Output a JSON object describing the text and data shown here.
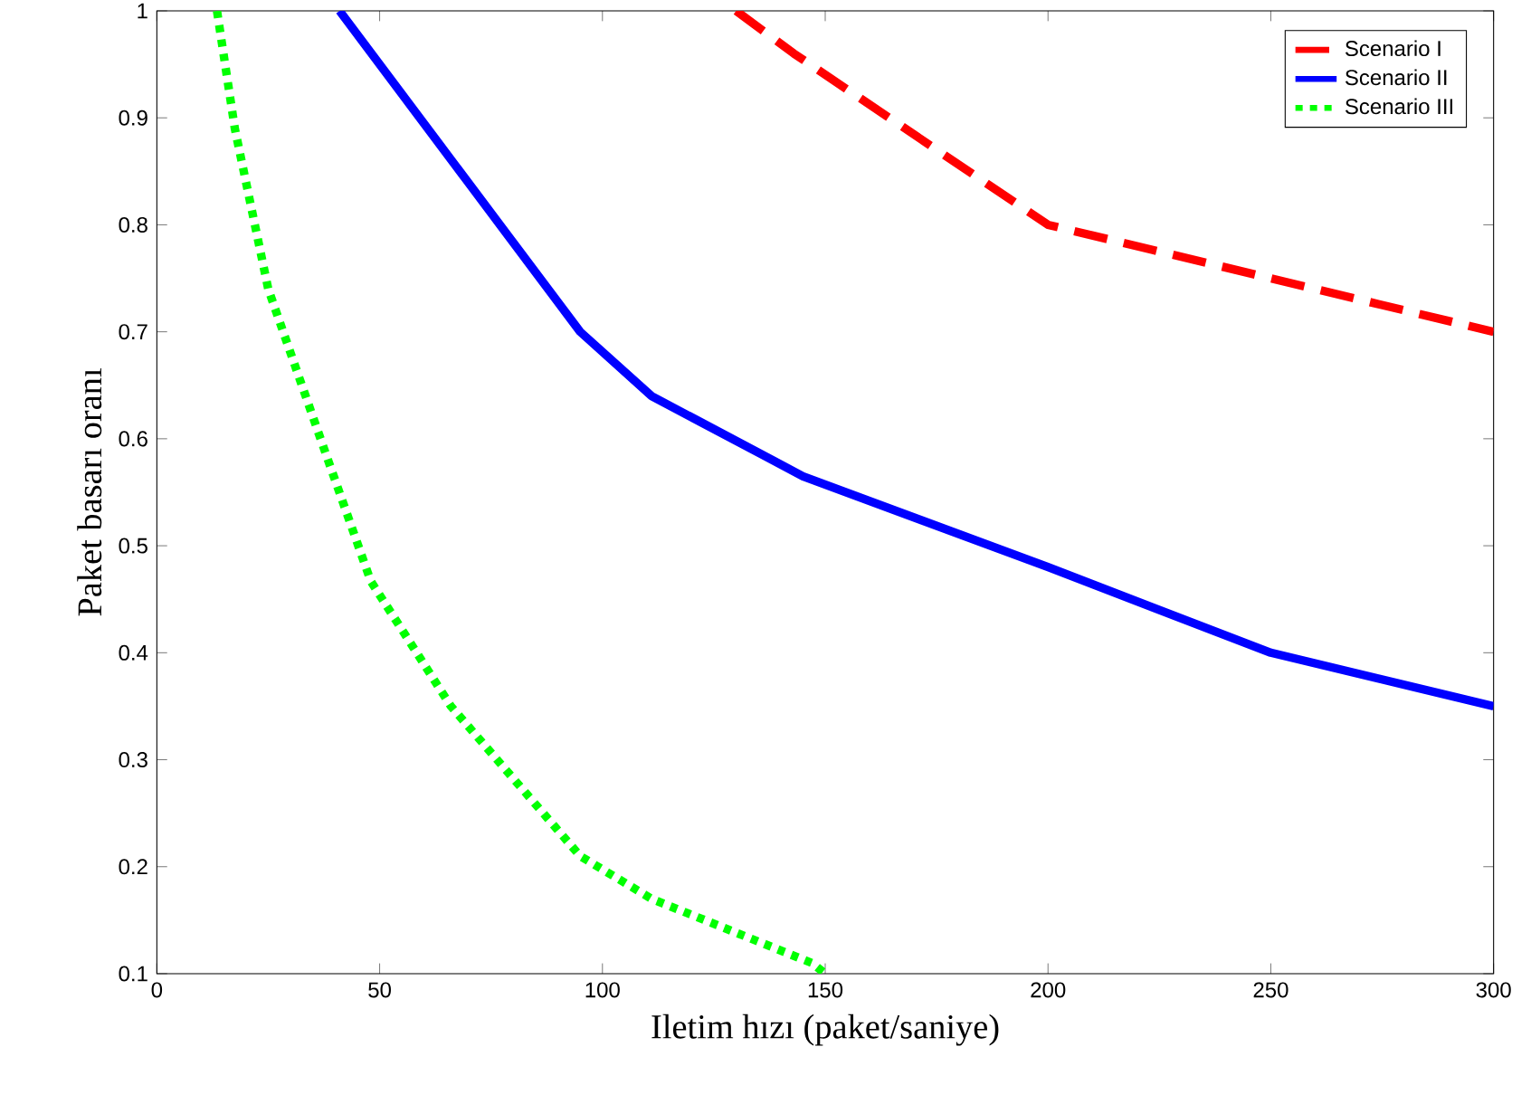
{
  "chart_data": {
    "type": "line",
    "xlabel": "Iletim hızı (paket/saniye)",
    "ylabel": "Paket basarı oranı",
    "xlim": [
      0,
      300
    ],
    "ylim": [
      0.1,
      1
    ],
    "xticks": [
      0,
      50,
      100,
      150,
      200,
      250,
      300
    ],
    "yticks": [
      0.1,
      0.2,
      0.3,
      0.4,
      0.5,
      0.6,
      0.7,
      0.8,
      0.9,
      1
    ],
    "legend": "top right",
    "grid": false,
    "marker": "none",
    "series": [
      {
        "name": "Scenario I",
        "color": "#ff0000",
        "line_style": "dashed",
        "x": [
          130,
          143,
          200,
          250,
          300
        ],
        "values": [
          1,
          0.96,
          0.8,
          0.75,
          0.7
        ]
      },
      {
        "name": "Scenario II",
        "color": "#0000ff",
        "line_style": "solid",
        "x": [
          41,
          95,
          111,
          145,
          200,
          250,
          300
        ],
        "values": [
          1,
          0.7,
          0.64,
          0.565,
          0.48,
          0.4,
          0.35
        ]
      },
      {
        "name": "Scenario III",
        "color": "#00ff00",
        "line_style": "dotted",
        "x": [
          13.5,
          17.5,
          25,
          38,
          48,
          66,
          95,
          111,
          147,
          150
        ],
        "values": [
          1,
          0.89,
          0.74,
          0.585,
          0.467,
          0.35,
          0.21,
          0.17,
          0.11,
          0.1
        ]
      }
    ]
  }
}
